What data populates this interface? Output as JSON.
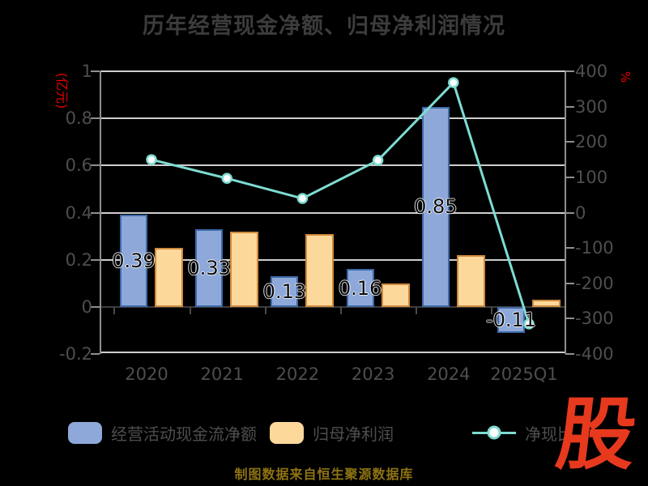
{
  "title": "历年经营现金净额、归母净利润情况",
  "caption": "制图数据来自恒生聚源数据库",
  "logo": {
    "text": "股",
    "color": "#e7391e"
  },
  "left_axis": {
    "unit_label": "(亿元)",
    "unit_color": "#e60000",
    "ticks": [
      "1",
      "0.8",
      "0.6",
      "0.4",
      "0.2",
      "0",
      "-0.2"
    ],
    "tick_values": [
      1,
      0.8,
      0.6,
      0.4,
      0.2,
      0,
      -0.2
    ],
    "min": -0.2,
    "max": 1
  },
  "right_axis": {
    "unit_label": "%",
    "unit_color": "#e60000",
    "ticks": [
      "400",
      "300",
      "200",
      "100",
      "0",
      "-100",
      "-200",
      "-300",
      "-400"
    ],
    "tick_values": [
      400,
      300,
      200,
      100,
      0,
      -100,
      -200,
      -300,
      -400
    ],
    "min": -400,
    "max": 400
  },
  "chart_data": {
    "type": "bar+line",
    "title": "历年经营现金净额、归母净利润情况",
    "categories": [
      "2020",
      "2021",
      "2022",
      "2023",
      "2024",
      "2025Q1"
    ],
    "ylabel_left": "(亿元)",
    "ylabel_right": "%",
    "left_axis_range": [
      -0.2,
      1
    ],
    "right_axis_range": [
      -400,
      400
    ],
    "grid": "horizontal solid gridlines, dark emphasized zero line",
    "legend_position": "bottom",
    "series": [
      {
        "name": "经营活动现金流净额",
        "type": "bar",
        "axis": "left",
        "fill": "#8EA9D9",
        "stroke": "#3F69A8",
        "values": [
          0.39,
          0.33,
          0.13,
          0.16,
          0.85,
          -0.11
        ],
        "labels": [
          "0.39",
          "0.33",
          "0.13",
          "0.16",
          "0.85",
          "-0.11"
        ]
      },
      {
        "name": "归母净利润",
        "type": "bar",
        "axis": "left",
        "fill": "#FDD89B",
        "stroke": "#CE8B3E",
        "values": [
          0.25,
          0.32,
          0.31,
          0.1,
          0.22,
          0.03
        ]
      },
      {
        "name": "净现比",
        "type": "line",
        "axis": "right",
        "stroke": "#7EDCD2",
        "marker": "white-circle",
        "values": [
          150,
          97,
          40,
          148,
          368,
          -315
        ]
      }
    ]
  },
  "legend": [
    {
      "label": "经营活动现金流净额",
      "swatch": "bar",
      "color": "#8EA9D9"
    },
    {
      "label": "归母净利润",
      "swatch": "bar",
      "color": "#FDD89B"
    },
    {
      "label": "净现比",
      "swatch": "line",
      "color": "#7EDCD2"
    }
  ]
}
